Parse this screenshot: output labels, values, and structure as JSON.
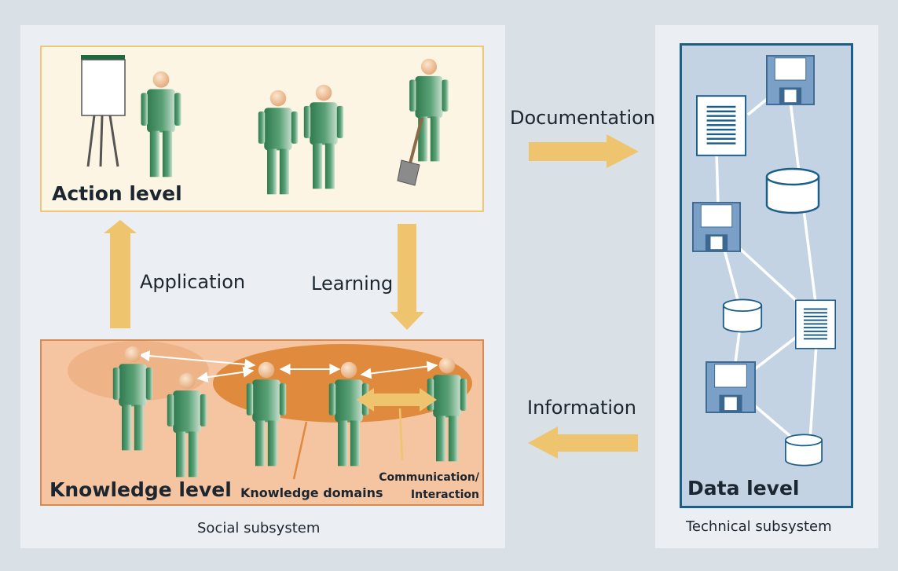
{
  "action_level": {
    "title": "Action level"
  },
  "knowledge_level": {
    "title": "Knowledge level",
    "domains_label": "Knowledge domains",
    "comm_label_line1": "Communication/",
    "comm_label_line2": "Interaction"
  },
  "data_level": {
    "title": "Data level"
  },
  "flows": {
    "application": "Application",
    "learning": "Learning",
    "documentation": "Documentation",
    "information": "Information"
  },
  "subsystems": {
    "social": "Social subsystem",
    "technical": "Technical subsystem"
  },
  "colors": {
    "arrow": "#efc46f",
    "figure": "#3f8a5e",
    "action_border": "#efc77b",
    "knowledge_border": "#d98a50",
    "data_border": "#1b5e8a"
  }
}
